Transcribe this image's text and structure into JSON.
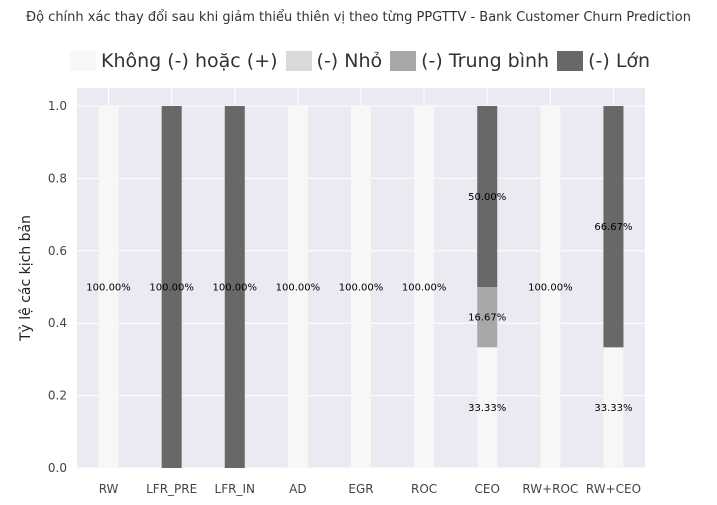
{
  "chart_data": {
    "type": "bar",
    "stacked": true,
    "title": "Độ chính xác thay đổi sau khi giảm thiểu thiên vị theo từng PPGTTV - Bank Customer Churn Prediction",
    "xlabel": "",
    "ylabel": "Tỷ lệ các kịch bản",
    "ylim": [
      0,
      1.0
    ],
    "yticks": [
      "0.0",
      "0.2",
      "0.4",
      "0.6",
      "0.8",
      "1.0"
    ],
    "grid": true,
    "legend_position": "top",
    "categories": [
      "RW",
      "LFR_PRE",
      "LFR_IN",
      "AD",
      "EGR",
      "ROC",
      "CEO",
      "RW+ROC",
      "RW+CEO"
    ],
    "series": [
      {
        "name": "Không (-) hoặc (+)",
        "color": "#f7f7f7",
        "values": [
          1.0,
          0,
          0,
          1.0,
          1.0,
          1.0,
          0.3333,
          1.0,
          0.3333
        ],
        "labels": [
          "100.00%",
          "",
          "",
          "100.00%",
          "100.00%",
          "100.00%",
          "33.33%",
          "100.00%",
          "33.33%"
        ]
      },
      {
        "name": "(-) Nhỏ",
        "color": "#d9d9d9",
        "values": [
          0,
          0,
          0,
          0,
          0,
          0,
          0,
          0,
          0
        ],
        "labels": [
          "",
          "",
          "",
          "",
          "",
          "",
          "",
          "",
          ""
        ]
      },
      {
        "name": "(-) Trung bình",
        "color": "#a8a8a8",
        "values": [
          0,
          0,
          0,
          0,
          0,
          0,
          0.1667,
          0,
          0
        ],
        "labels": [
          "",
          "",
          "",
          "",
          "",
          "",
          "16.67%",
          "",
          ""
        ]
      },
      {
        "name": "(-) Lớn",
        "color": "#686868",
        "values": [
          0,
          1.0,
          1.0,
          0,
          0,
          0,
          0.5,
          0,
          0.6667
        ],
        "labels": [
          "",
          "100.00%",
          "100.00%",
          "",
          "",
          "",
          "50.00%",
          "",
          "66.67%"
        ]
      }
    ]
  },
  "colors": {
    "plot_background": "#eaeaf2",
    "grid": "#ffffff"
  }
}
